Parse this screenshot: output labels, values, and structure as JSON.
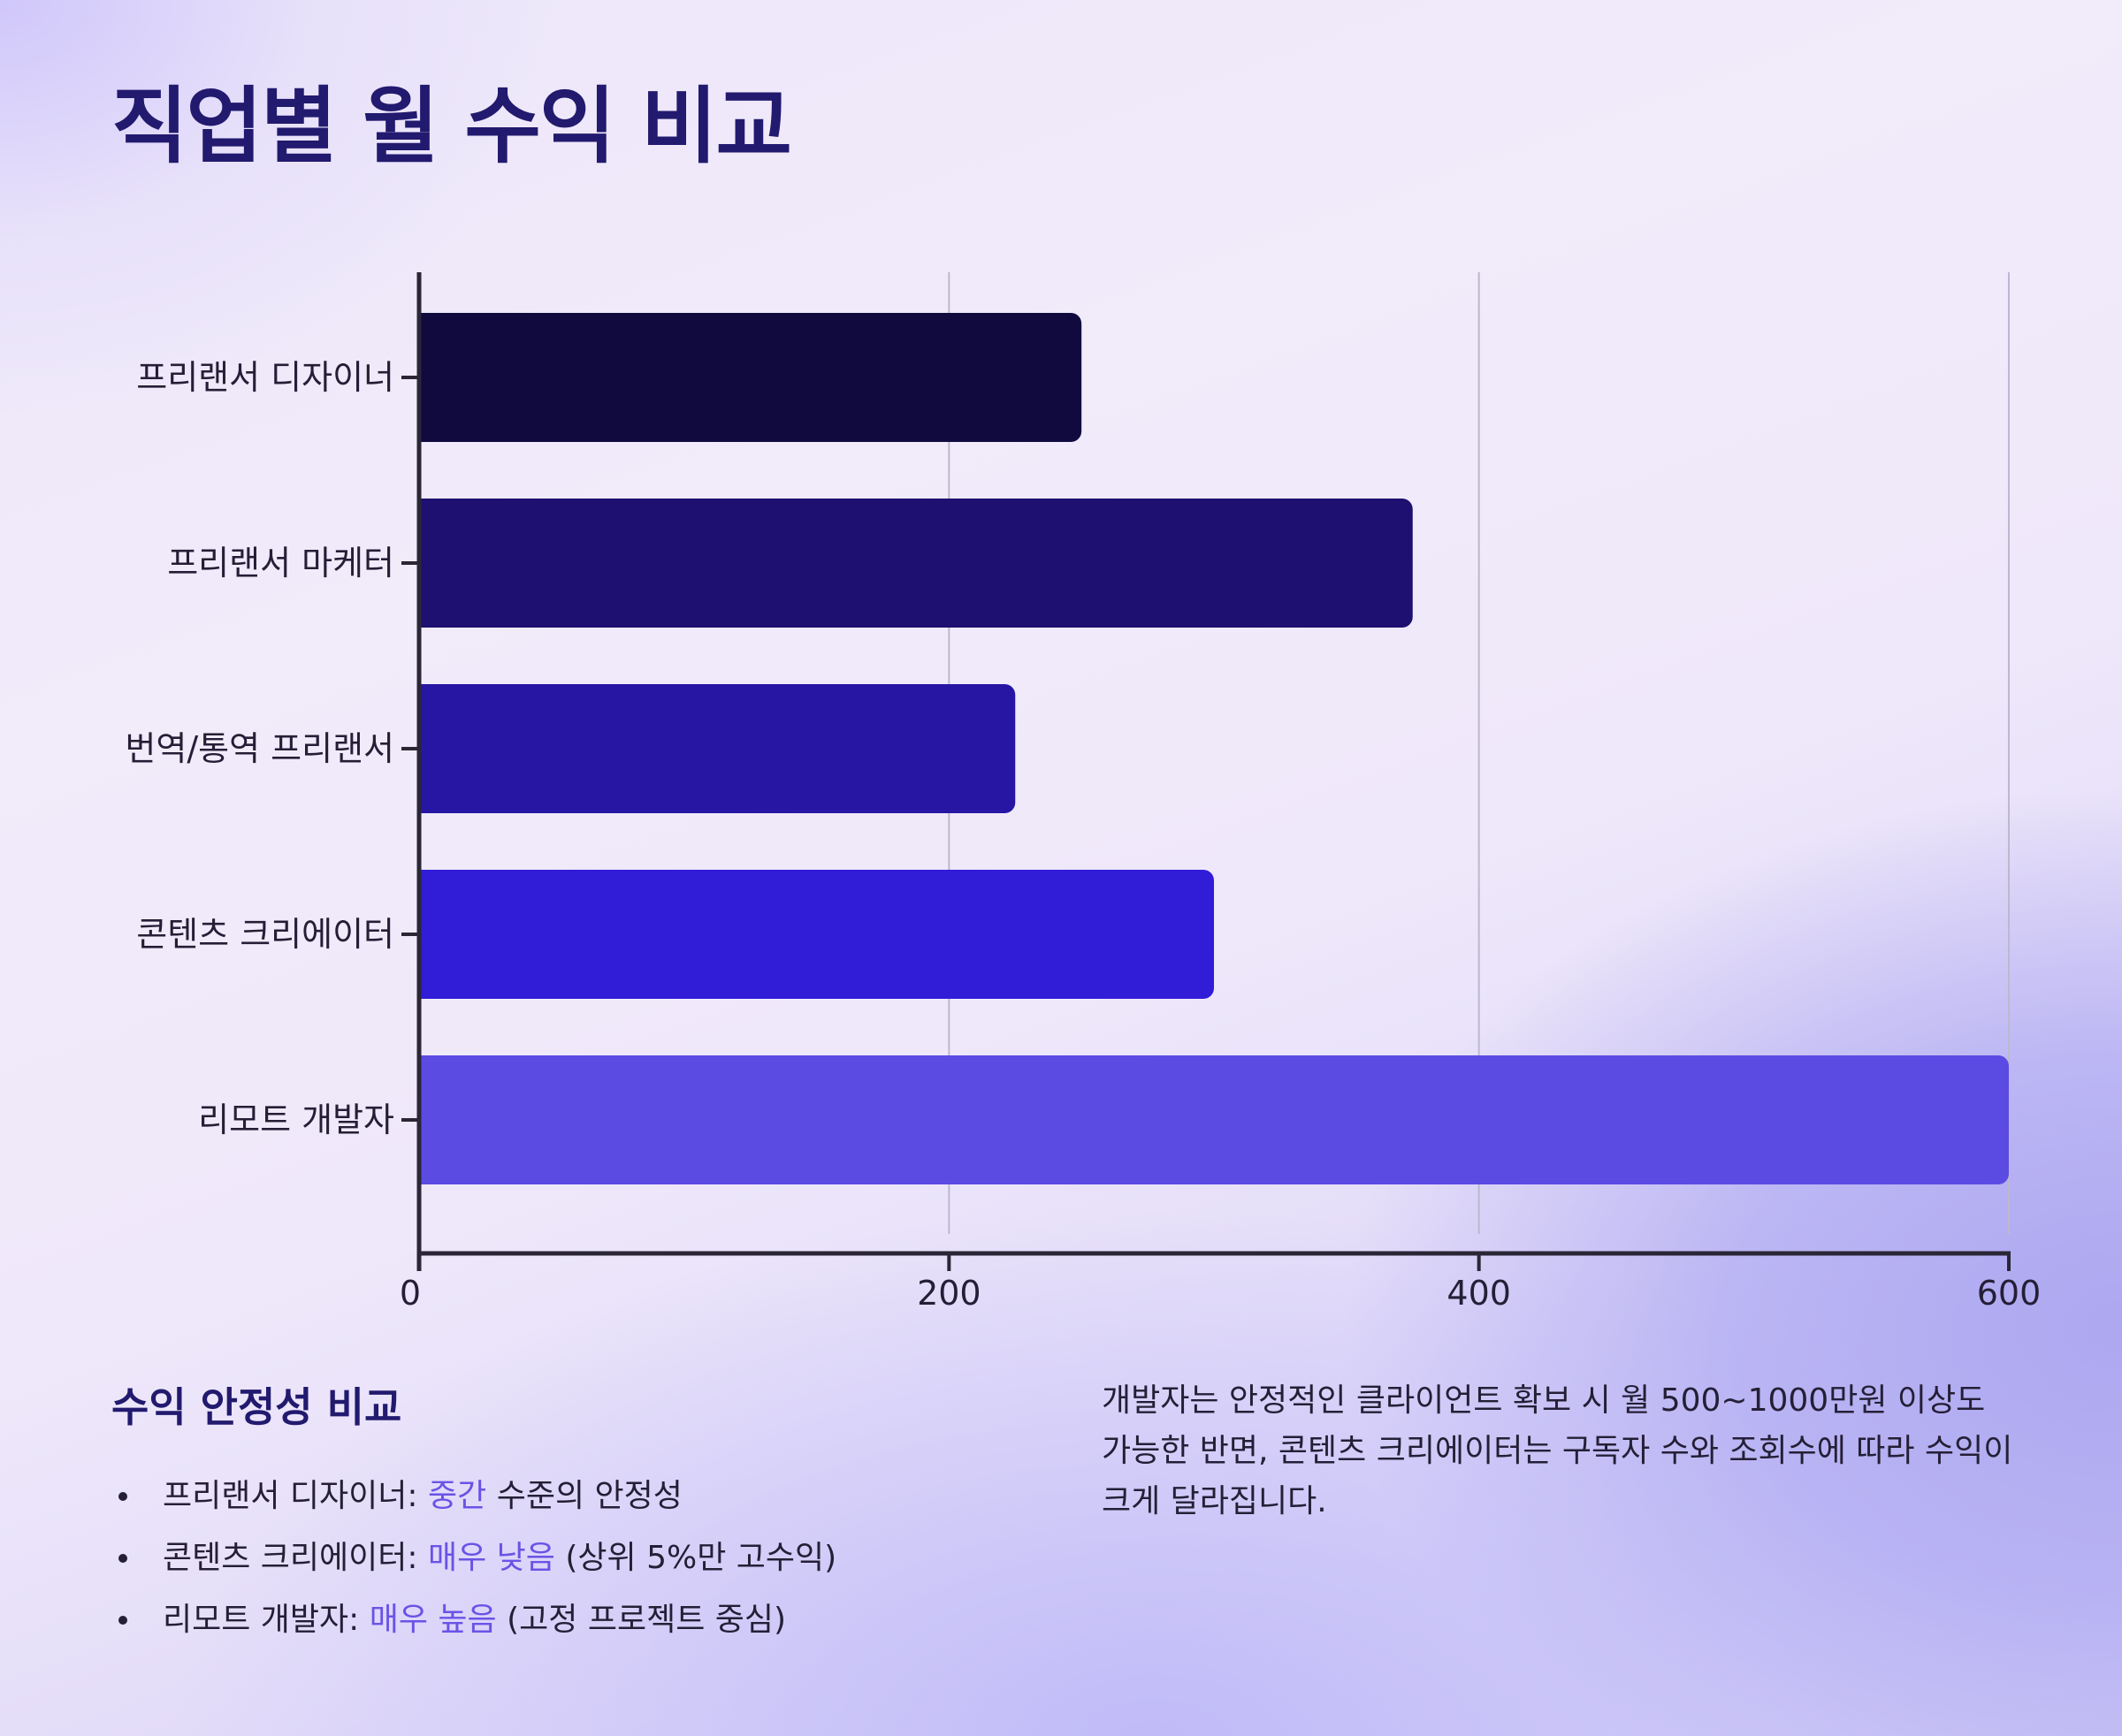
{
  "title": "직업별 월 수익 비교",
  "chart_data": {
    "type": "bar",
    "orientation": "horizontal",
    "title": "직업별 월 수익 비교",
    "categories": [
      "프리랜서 디자이너",
      "프리랜서 마케터",
      "번역/통역 프리랜서",
      "콘텐츠 크리에이터",
      "리모트 개발자"
    ],
    "values": [
      250,
      375,
      225,
      300,
      600
    ],
    "colors": [
      "#100a3f",
      "#1d1070",
      "#2716a3",
      "#311cd8",
      "#5b4be3"
    ],
    "xlim": [
      0,
      600
    ],
    "xticks": [
      0,
      200,
      400,
      600
    ],
    "xlabel": "",
    "ylabel": "",
    "grid": "vertical",
    "legend": "none"
  },
  "stability": {
    "title": "수익 안정성 비교",
    "items": [
      {
        "name": "프리랜서 디자이너:",
        "level": "중간",
        "note": "수준의 안정성"
      },
      {
        "name": "콘텐츠 크리에이터:",
        "level": "매우 낮음",
        "note": "(상위 5%만 고수익)"
      },
      {
        "name": "리모트 개발자:",
        "level": "매우 높음",
        "note": "(고정 프로젝트 중심)"
      }
    ]
  },
  "description": "개발자는 안정적인 클라이언트 확보 시 월 500~1000만원 이상도 가능한 반면, 콘텐츠 크리에이터는 구독자 수와 조회수에 따라 수익이 크게 달라집니다.",
  "colors": {
    "title": "#221a6e",
    "highlight": "#6a53e6",
    "axis": "#2a2636",
    "grid": "#bdb8cf"
  }
}
